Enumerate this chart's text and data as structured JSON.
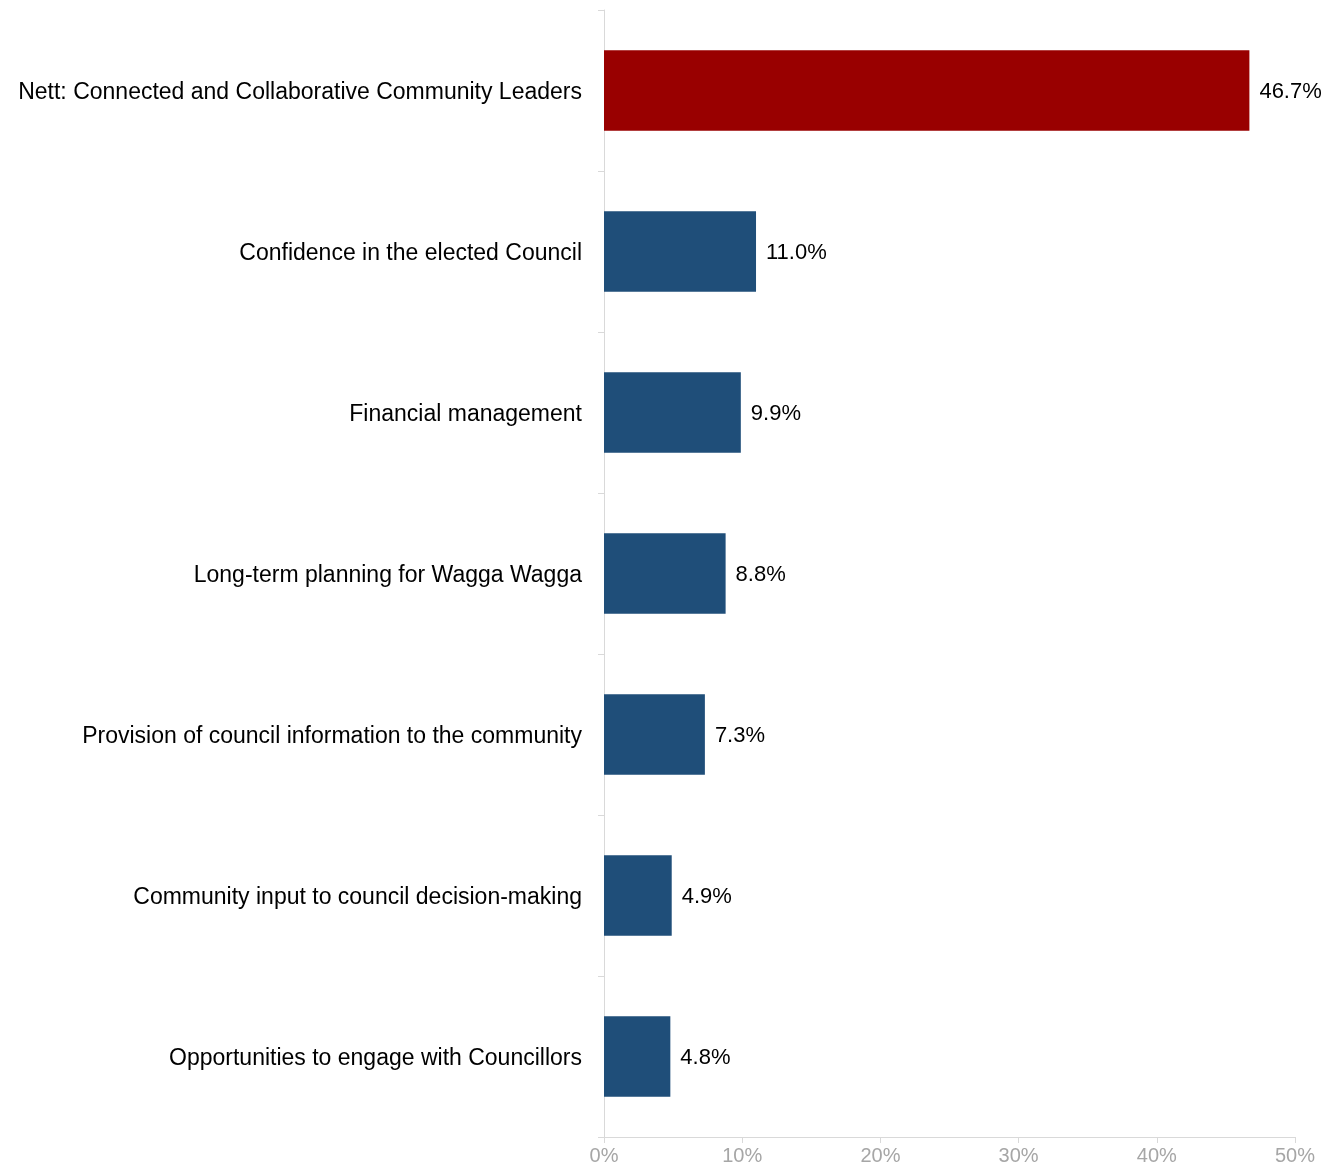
{
  "chart_data": {
    "type": "bar",
    "orientation": "horizontal",
    "categories": [
      "Nett: Connected and Collaborative Community Leaders",
      "Confidence in the elected Council",
      "Financial management",
      "Long-term planning for Wagga Wagga",
      "Provision of council information to the community",
      "Community input to council decision-making",
      "Opportunities to engage with Councillors"
    ],
    "values": [
      46.7,
      11.0,
      9.9,
      8.8,
      7.3,
      4.9,
      4.8
    ],
    "colors": [
      "#990000",
      "#1f4e79",
      "#1f4e79",
      "#1f4e79",
      "#1f4e79",
      "#1f4e79",
      "#1f4e79"
    ],
    "value_labels": [
      "46.7%",
      "11.0%",
      "9.9%",
      "8.8%",
      "7.3%",
      "4.9%",
      "4.8%"
    ],
    "xlim": [
      0,
      50
    ],
    "xticks": [
      {
        "value": 0,
        "label": "0%"
      },
      {
        "value": 10,
        "label": "10%"
      },
      {
        "value": 20,
        "label": "20%"
      },
      {
        "value": 30,
        "label": "30%"
      },
      {
        "value": 40,
        "label": "40%"
      },
      {
        "value": 50,
        "label": "50%"
      }
    ],
    "grid": false
  }
}
